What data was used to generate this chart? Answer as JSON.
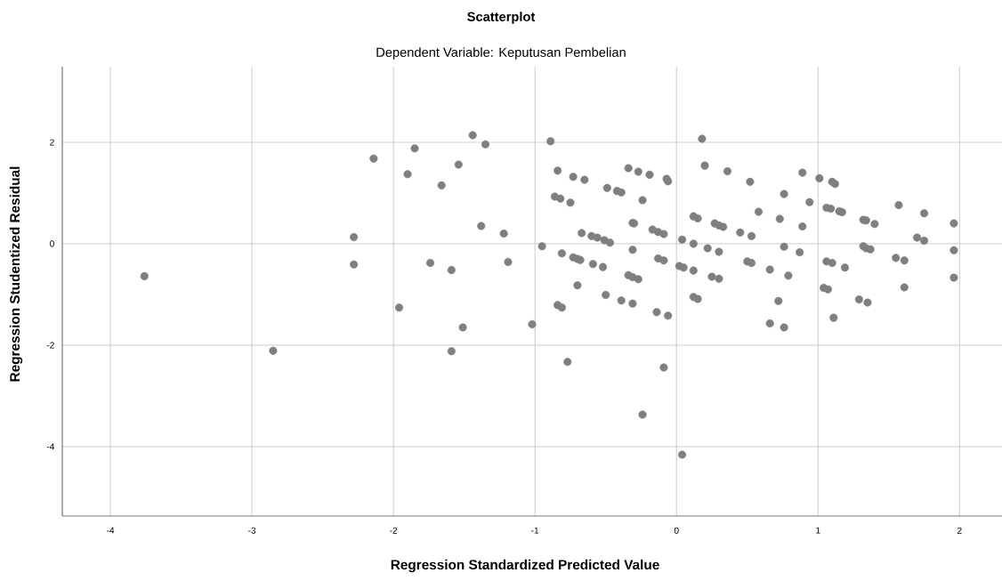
{
  "chart_data": {
    "type": "scatter",
    "title": "Scatterplot",
    "subtitle": "Dependent Variable: Keputusan Pembelian",
    "xlabel": "Regression Standardized Predicted Value",
    "ylabel": "Regression Studentized Residual",
    "x": [
      -3.76,
      -2.85,
      -2.28,
      -2.28,
      -2.14,
      -1.96,
      -1.9,
      -1.85,
      -1.74,
      -1.66,
      -1.59,
      -1.59,
      -1.54,
      -1.51,
      -1.44,
      -1.38,
      -1.35,
      -1.22,
      -1.19,
      -1.02,
      -0.89,
      -0.84,
      -0.73,
      -0.65,
      -0.49,
      -0.42,
      -0.39,
      -0.34,
      -0.27,
      -0.19,
      -0.07,
      -0.06,
      -0.24,
      0.18,
      0.2,
      0.36,
      -0.86,
      -0.82,
      -0.75,
      -0.31,
      -0.3,
      -0.17,
      -0.13,
      -0.09,
      0.12,
      0.15,
      0.27,
      0.3,
      0.33,
      0.45,
      -0.67,
      -0.6,
      -0.56,
      -0.51,
      -0.47,
      -0.95,
      0.04,
      0.12,
      0.22,
      0.3,
      -0.31,
      -0.81,
      -0.73,
      -0.7,
      -0.68,
      -0.59,
      -0.52,
      -0.13,
      -0.09,
      0.02,
      0.05,
      0.12,
      -0.34,
      -0.31,
      -0.27,
      0.25,
      0.3,
      -0.7,
      -0.5,
      -0.39,
      -0.31,
      -0.14,
      -0.06,
      0.12,
      0.15,
      -0.84,
      -0.81,
      -0.77,
      -0.09,
      -0.24,
      0.04,
      0.52,
      0.53,
      0.58,
      0.73,
      0.76,
      0.89,
      0.94,
      0.89,
      1.01,
      1.1,
      1.12,
      1.06,
      1.09,
      1.15,
      1.17,
      1.32,
      1.34,
      1.4,
      1.57,
      1.75,
      1.96,
      1.7,
      1.75,
      0.76,
      0.87,
      0.5,
      0.53,
      0.66,
      0.79,
      0.72,
      0.66,
      0.76,
      1.32,
      1.34,
      1.37,
      1.06,
      1.1,
      1.19,
      1.04,
      1.07,
      1.11,
      1.29,
      1.35,
      1.55,
      1.61,
      1.61,
      1.96,
      1.96
    ],
    "values": [
      -0.64,
      -2.11,
      0.13,
      -0.41,
      1.68,
      -1.26,
      1.37,
      1.88,
      -0.38,
      1.15,
      -0.52,
      -2.12,
      1.56,
      -1.65,
      2.14,
      0.35,
      1.96,
      0.2,
      -0.36,
      -1.59,
      2.02,
      1.44,
      1.32,
      1.26,
      1.1,
      1.04,
      1.01,
      1.49,
      1.42,
      1.36,
      1.28,
      1.23,
      0.86,
      2.07,
      1.54,
      1.43,
      0.93,
      0.89,
      0.81,
      0.41,
      0.4,
      0.28,
      0.23,
      0.19,
      0.54,
      0.5,
      0.4,
      0.36,
      0.33,
      0.22,
      0.21,
      0.15,
      0.12,
      0.07,
      0.02,
      -0.05,
      0.08,
      0.0,
      -0.09,
      -0.16,
      -0.12,
      -0.19,
      -0.27,
      -0.3,
      -0.32,
      -0.4,
      -0.46,
      -0.29,
      -0.33,
      -0.44,
      -0.47,
      -0.53,
      -0.62,
      -0.66,
      -0.7,
      -0.65,
      -0.69,
      -0.82,
      -1.01,
      -1.12,
      -1.18,
      -1.35,
      -1.42,
      -1.05,
      -1.09,
      -1.21,
      -1.26,
      -2.33,
      -2.44,
      -3.37,
      -4.16,
      1.22,
      0.15,
      0.63,
      0.49,
      0.98,
      1.4,
      0.82,
      0.34,
      1.29,
      1.22,
      1.18,
      0.71,
      0.69,
      0.64,
      0.62,
      0.47,
      0.46,
      0.39,
      0.76,
      0.6,
      0.4,
      0.12,
      0.06,
      -0.06,
      -0.17,
      -0.35,
      -0.38,
      -0.51,
      -0.63,
      -1.13,
      -1.57,
      -1.65,
      -0.05,
      -0.09,
      -0.11,
      -0.35,
      -0.38,
      -0.47,
      -0.87,
      -0.9,
      -1.46,
      -1.1,
      -1.16,
      -0.28,
      -0.33,
      -0.86,
      -0.13,
      -0.67
    ],
    "color": "#7f7f7f",
    "marker": "circle",
    "grid": true,
    "xlim": [
      -4.34,
      2.3
    ],
    "ylim": [
      -5.37,
      3.49
    ],
    "xticks": [
      -4,
      -3,
      -2,
      -1,
      0,
      1,
      2
    ],
    "yticks": [
      -4,
      -2,
      0,
      2
    ]
  }
}
